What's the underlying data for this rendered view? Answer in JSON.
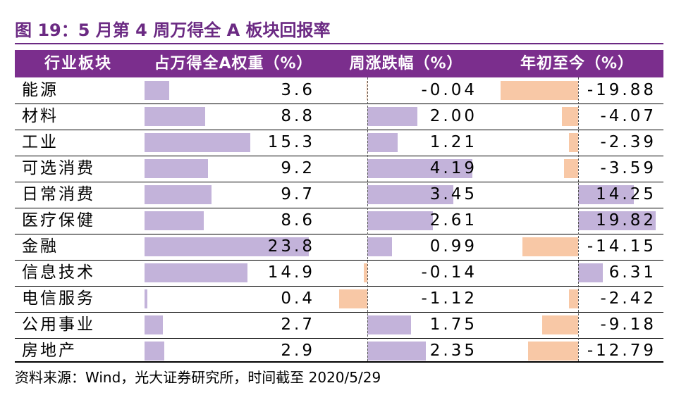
{
  "title": "图 19：5 月第 4 周万得全 A 板块回报率",
  "headers": [
    "行业板块",
    "占万得全A权重（%）",
    "周涨跌幅（%）",
    "年初至今（%）"
  ],
  "colors": {
    "accent": "#7b2e8d",
    "weight_bar": "#c3b3da",
    "negative_bar": "#f8c8a6"
  },
  "rows": [
    {
      "name": "能源",
      "weight": "3.6",
      "week": "-0.04",
      "ytd": "-19.88"
    },
    {
      "name": "材料",
      "weight": "8.8",
      "week": "2.00",
      "ytd": "-4.07"
    },
    {
      "name": "工业",
      "weight": "15.3",
      "week": "1.21",
      "ytd": "-2.39"
    },
    {
      "name": "可选消费",
      "weight": "9.2",
      "week": "4.19",
      "ytd": "-3.59"
    },
    {
      "name": "日常消费",
      "weight": "9.7",
      "week": "3.45",
      "ytd": "14.25"
    },
    {
      "name": "医疗保健",
      "weight": "8.6",
      "week": "2.61",
      "ytd": "19.82"
    },
    {
      "name": "金融",
      "weight": "23.8",
      "week": "0.99",
      "ytd": "-14.15"
    },
    {
      "name": "信息技术",
      "weight": "14.9",
      "week": "-0.14",
      "ytd": "6.31"
    },
    {
      "name": "电信服务",
      "weight": "0.4",
      "week": "-1.12",
      "ytd": "-2.42"
    },
    {
      "name": "公用事业",
      "weight": "2.7",
      "week": "1.75",
      "ytd": "-9.18"
    },
    {
      "name": "房地产",
      "weight": "2.9",
      "week": "2.35",
      "ytd": "-12.79"
    }
  ],
  "source": "资料来源：Wind，光大证券研究所，时间截至 2020/5/29"
}
